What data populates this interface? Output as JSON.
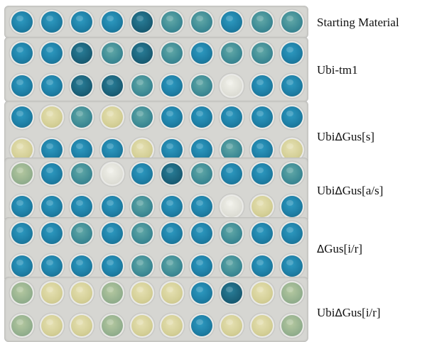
{
  "labels": {
    "starting_material": "Starting Material",
    "ubi_tm1": "Ubi-tm1",
    "ubi_dgus_s_prefix": "Ubi",
    "ubi_dgus_s_delta": "Δ",
    "ubi_dgus_s_suffix": "Gus[s]",
    "ubi_dgus_as_prefix": "Ubi",
    "ubi_dgus_as_delta": "Δ",
    "ubi_dgus_as_suffix": "Gus[a/s]",
    "dgus_ir_delta": "Δ",
    "dgus_ir_suffix": "Gus[i/r]",
    "ubi_dgus_ir_prefix": "Ubi",
    "ubi_dgus_ir_delta": "Δ",
    "ubi_dgus_ir_suffix": "Gus[i/r]"
  },
  "color_key": {
    "b": "#1e7fa6",
    "db": "#1a5f77",
    "m": "#3f8c96",
    "y": "#d4cf96",
    "gy": "#94b08e",
    "w": "#dcdcd4"
  },
  "panels": [
    {
      "rows": [
        [
          "b",
          "b",
          "b",
          "b",
          "db",
          "m",
          "m",
          "b",
          "m",
          "m"
        ]
      ]
    },
    {
      "rows": [
        [
          "b",
          "b",
          "db",
          "m",
          "db",
          "m",
          "b",
          "m",
          "m",
          "b"
        ],
        [
          "b",
          "b",
          "db",
          "db",
          "m",
          "b",
          "m",
          "w",
          "b",
          "b"
        ]
      ]
    },
    {
      "rows": [
        [
          "b",
          "y",
          "m",
          "y",
          "m",
          "b",
          "b",
          "b",
          "b",
          "b"
        ],
        [
          "y",
          "b",
          "b",
          "b",
          "y",
          "b",
          "b",
          "m",
          "b",
          "y"
        ]
      ]
    },
    {
      "rows": [
        [
          "gy",
          "b",
          "m",
          "w",
          "b",
          "db",
          "m",
          "b",
          "b",
          "m"
        ],
        [
          "b",
          "b",
          "b",
          "b",
          "m",
          "b",
          "b",
          "w",
          "y",
          "b"
        ]
      ]
    },
    {
      "rows": [
        [
          "b",
          "b",
          "m",
          "b",
          "m",
          "b",
          "b",
          "m",
          "b",
          "b"
        ],
        [
          "b",
          "b",
          "b",
          "b",
          "m",
          "m",
          "b",
          "m",
          "b",
          "b"
        ]
      ]
    },
    {
      "rows": [
        [
          "gy",
          "y",
          "y",
          "gy",
          "y",
          "y",
          "b",
          "db",
          "y",
          "gy"
        ],
        [
          "gy",
          "y",
          "y",
          "gy",
          "y",
          "y",
          "b",
          "y",
          "y",
          "gy"
        ]
      ]
    }
  ]
}
